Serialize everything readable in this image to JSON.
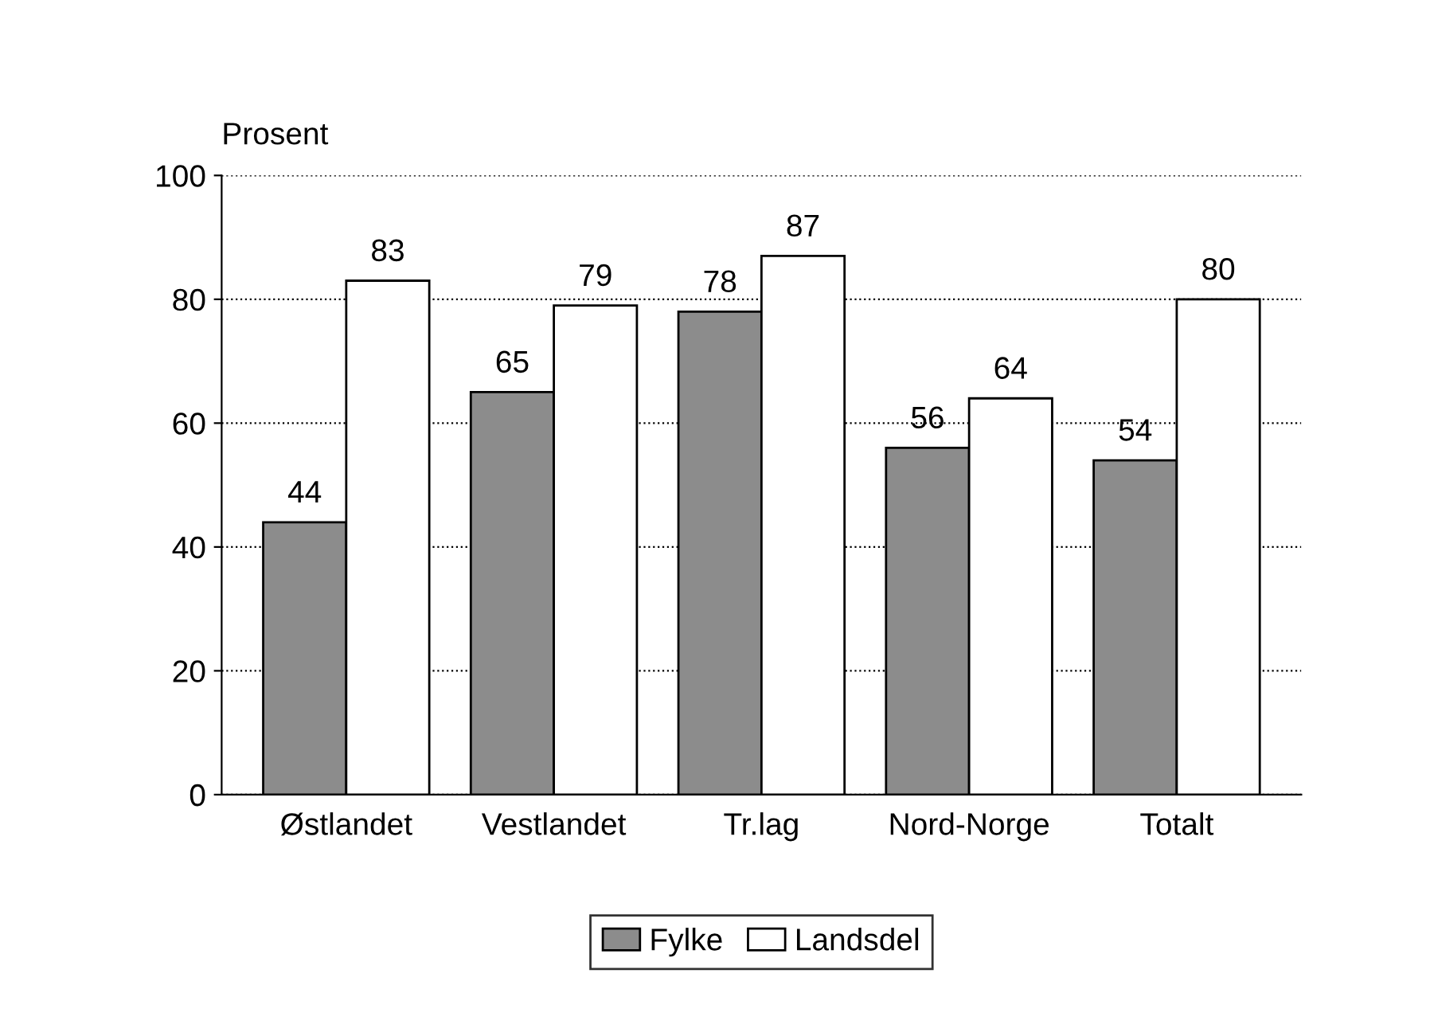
{
  "chart_data": {
    "type": "bar",
    "ylabel": "Prosent",
    "categories": [
      "Østlandet",
      "Vestlandet",
      "Tr.lag",
      "Nord-Norge",
      "Totalt"
    ],
    "series": [
      {
        "name": "Fylke",
        "color": "#8c8c8c",
        "values": [
          44,
          65,
          78,
          56,
          54
        ]
      },
      {
        "name": "Landsdel",
        "color": "#ffffff",
        "values": [
          83,
          79,
          87,
          64,
          80
        ]
      }
    ],
    "ylim": [
      0,
      100
    ],
    "yticks": [
      0,
      20,
      40,
      60,
      80,
      100
    ],
    "grid": "y",
    "legend": "bottom",
    "data_labels": true
  }
}
